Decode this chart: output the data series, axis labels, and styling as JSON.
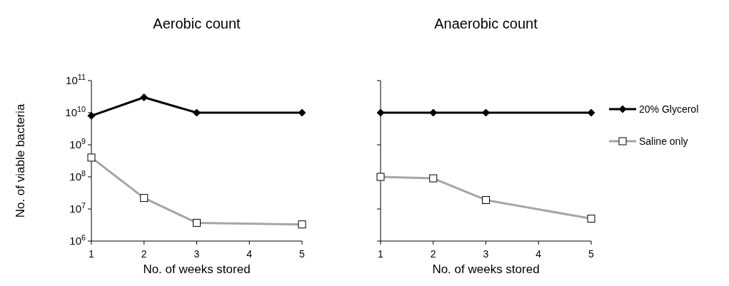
{
  "chart_data": [
    {
      "type": "line",
      "title": "Aerobic count",
      "xlabel": "No. of weeks stored",
      "ylabel": "No. of viable bacteria",
      "x": [
        1,
        2,
        3,
        5
      ],
      "xlim": [
        1,
        5
      ],
      "xticks": [
        1,
        2,
        3,
        4,
        5
      ],
      "log": "y",
      "ylim": [
        1000000,
        100000000000
      ],
      "yticks": [
        {
          "value": 1000000,
          "label": "10$^{6}$"
        },
        {
          "value": 10000000,
          "label": "10$^{7}$"
        },
        {
          "value": 100000000,
          "label": "10$^{8}$"
        },
        {
          "value": 1000000000,
          "label": "10$^{9}$"
        },
        {
          "value": 10000000000,
          "label": "10$^{10}$"
        },
        {
          "value": 100000000000,
          "label": "10$^{11}$"
        }
      ],
      "grid": false,
      "legend": false,
      "series": [
        {
          "color": "#000000",
          "marker": "diamond",
          "values": [
            8000000000,
            30000000000,
            10000000000,
            10000000000
          ]
        },
        {
          "color": "#a6a6a6",
          "marker": "square",
          "values": [
            400000000,
            22000000,
            3700000,
            3300000
          ]
        }
      ]
    },
    {
      "type": "line",
      "title": "Anaerobic count",
      "xlabel": "No. of weeks stored",
      "x": [
        1,
        2,
        3,
        5
      ],
      "xlim": [
        1,
        5
      ],
      "xticks": [
        1,
        2,
        3,
        4,
        5
      ],
      "log": "y",
      "ylim": [
        1000000,
        100000000000
      ],
      "yticks": [
        {
          "value": 1000000,
          "label": null
        },
        {
          "value": 10000000,
          "label": null
        },
        {
          "value": 100000000,
          "label": null
        },
        {
          "value": 1000000000,
          "label": null
        },
        {
          "value": 10000000000,
          "label": null
        },
        {
          "value": 100000000000,
          "label": null
        }
      ],
      "tick_labels": "x",
      "grid": false,
      "legend": "right",
      "series": [
        {
          "name": "20% Glycerol",
          "color": "#000000",
          "marker": "diamond",
          "values": [
            10000000000,
            10000000000,
            10000000000,
            10000000000
          ]
        },
        {
          "name": "Saline only",
          "color": "#a6a6a6",
          "marker": "square",
          "values": [
            100000000,
            90000000,
            19000000,
            5000000
          ]
        }
      ]
    }
  ]
}
